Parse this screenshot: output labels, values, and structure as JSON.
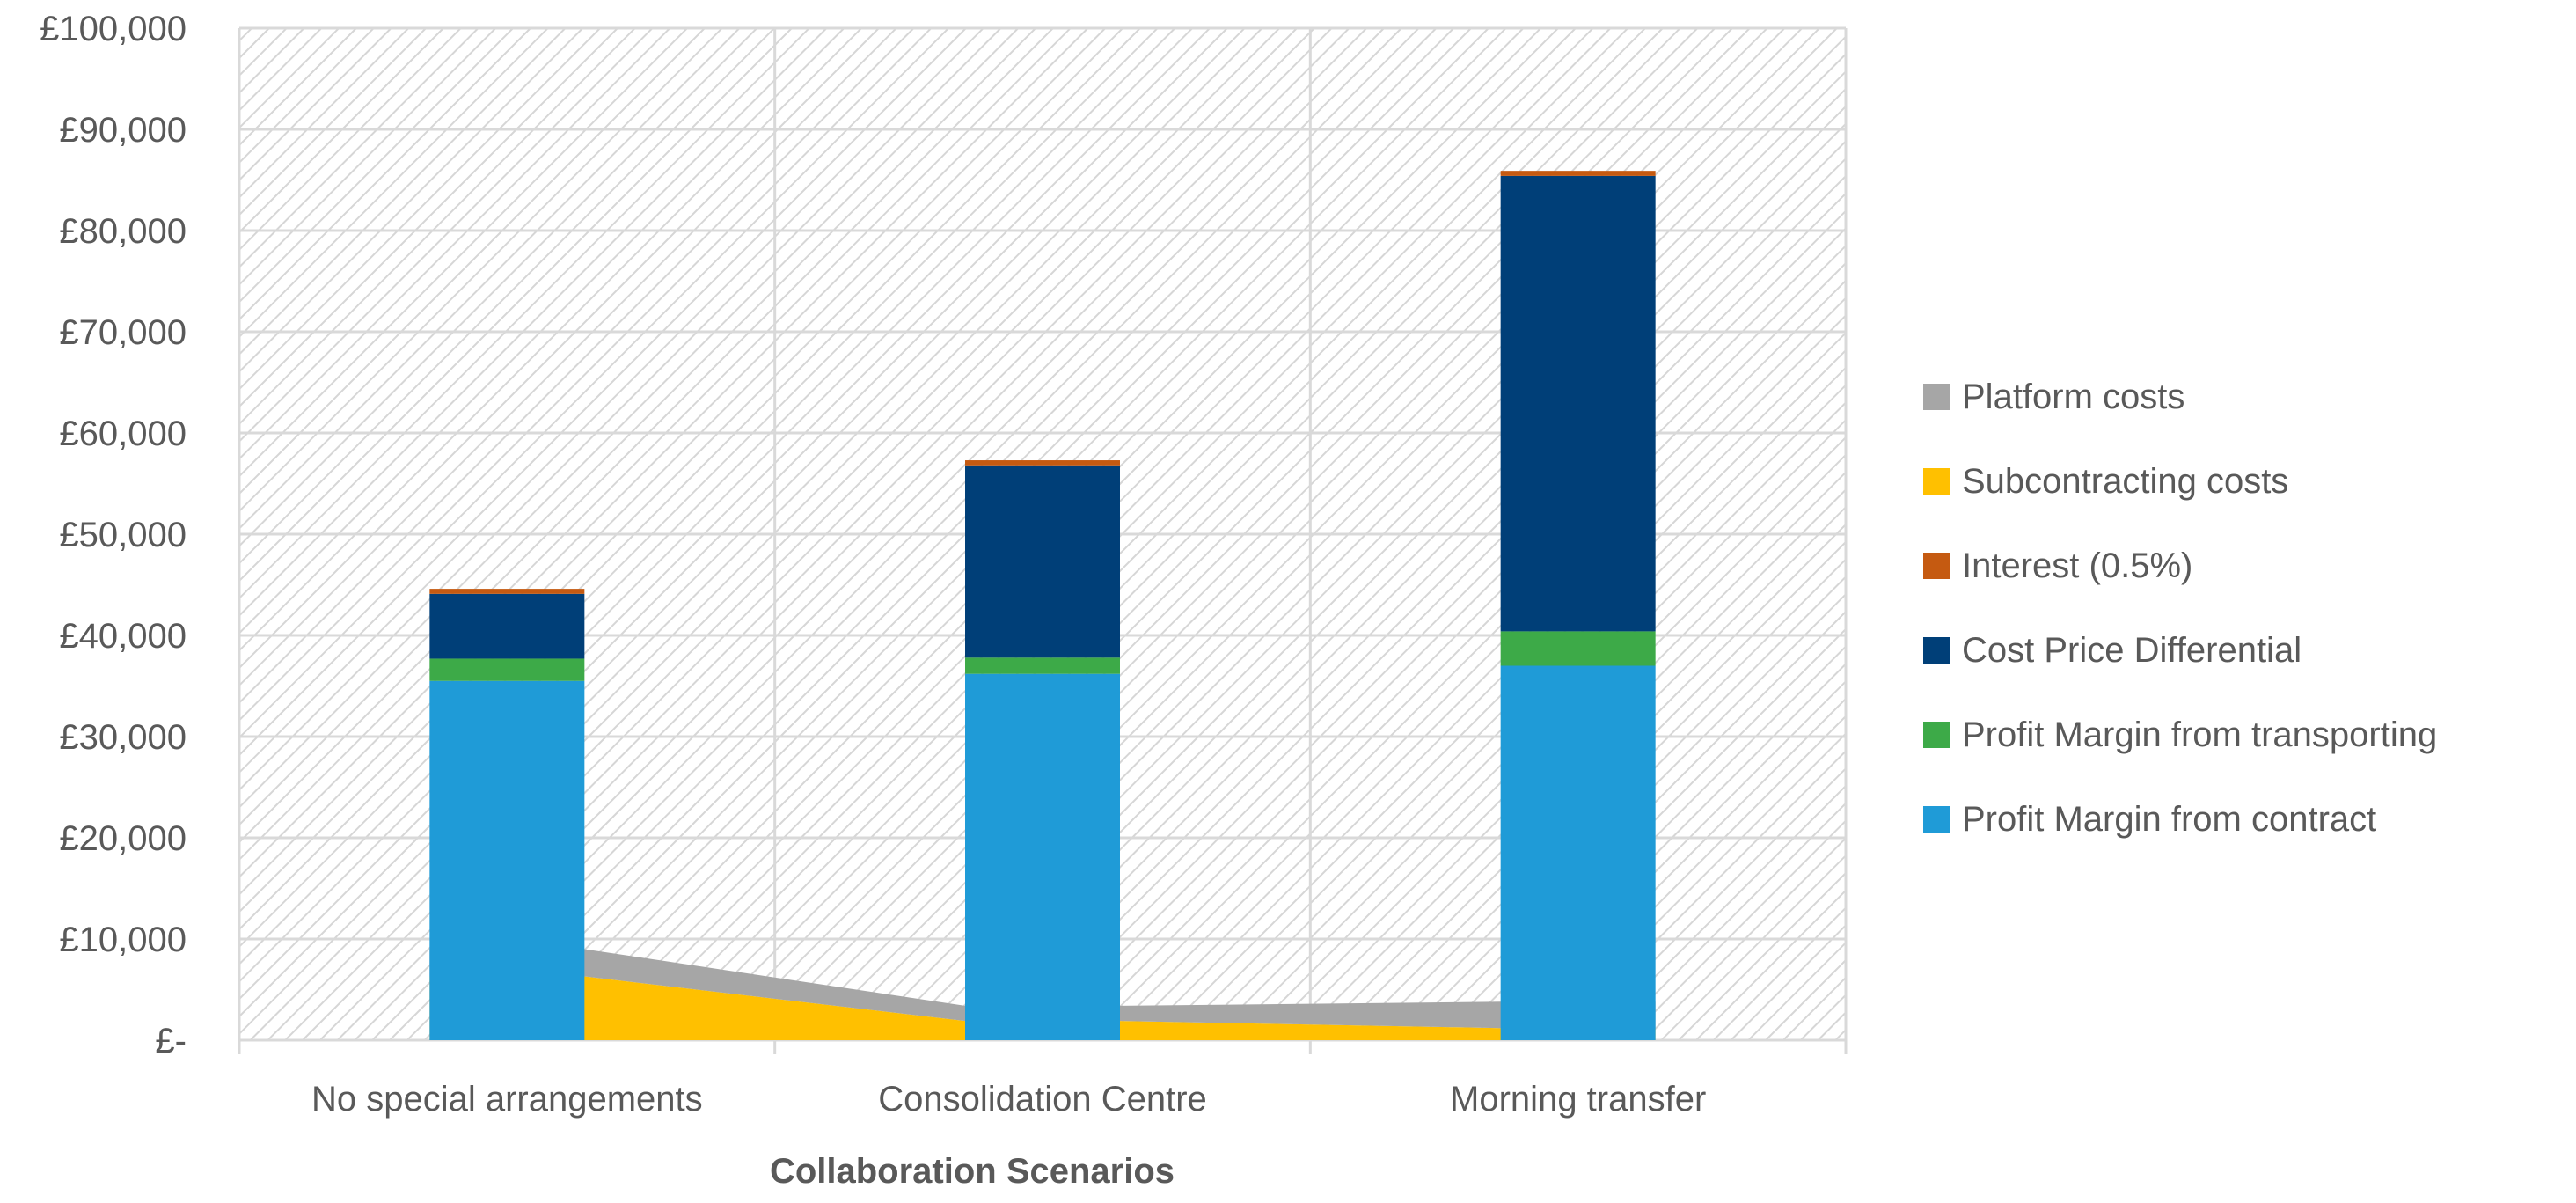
{
  "chart_data": {
    "type": "bar",
    "subtype": "stacked-bar-with-area",
    "title": "",
    "xlabel": "Collaboration Scenarios",
    "ylabel": "",
    "ylim": [
      0,
      100000
    ],
    "y_ticks": [
      {
        "value": 0,
        "label": "£-"
      },
      {
        "value": 10000,
        "label": "£10,000"
      },
      {
        "value": 20000,
        "label": "£20,000"
      },
      {
        "value": 30000,
        "label": "£30,000"
      },
      {
        "value": 40000,
        "label": "£40,000"
      },
      {
        "value": 50000,
        "label": "£50,000"
      },
      {
        "value": 60000,
        "label": "£60,000"
      },
      {
        "value": 70000,
        "label": "£70,000"
      },
      {
        "value": 80000,
        "label": "£80,000"
      },
      {
        "value": 90000,
        "label": "£90,000"
      },
      {
        "value": 100000,
        "label": "£100,000"
      }
    ],
    "categories": [
      "No special arrangements",
      "Consolidation Centre",
      "Morning transfer"
    ],
    "bar_series": [
      {
        "name": "Profit Margin from contract",
        "color": "#1f9bd7",
        "values": [
          35500,
          36200,
          37000
        ]
      },
      {
        "name": "Profit Margin from transporting",
        "color": "#3daa48",
        "values": [
          2200,
          1600,
          3400
        ]
      },
      {
        "name": "Cost Price Differential",
        "color": "#003f78",
        "values": [
          6400,
          19000,
          45000
        ]
      },
      {
        "name": "Interest (0.5%)",
        "color": "#c55a11",
        "values": [
          500,
          500,
          500
        ]
      }
    ],
    "area_series": [
      {
        "name": "Subcontracting costs",
        "color": "#ffc000",
        "values": [
          6300,
          1900,
          1200
        ]
      },
      {
        "name": "Platform costs",
        "color": "#a6a6a6",
        "values": [
          2700,
          1500,
          2600
        ]
      }
    ],
    "legend": {
      "position": "right",
      "order": [
        "Platform costs",
        "Subcontracting costs",
        "Interest (0.5%)",
        "Cost Price Differential",
        "Profit Margin from transporting",
        "Profit Margin from contract"
      ]
    },
    "grid": true
  },
  "colors": {
    "grid": "#d9d9d9",
    "hatch": "#d0d0d0",
    "text": "#595959"
  }
}
